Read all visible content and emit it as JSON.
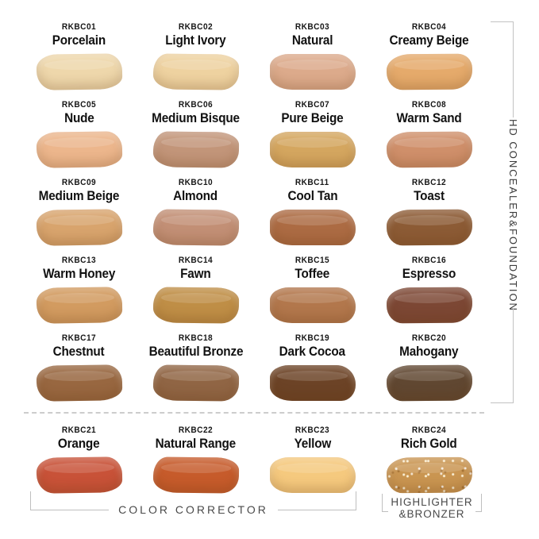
{
  "product_groups": {
    "right_vertical_label": "HD CONCEALER&FOUNDATION",
    "bottom_left_label": "COLOR CORRECTOR",
    "bottom_right_label_line1": "HIGHLIGHTER",
    "bottom_right_label_line2": "&BRONZER"
  },
  "style_colors": {
    "bracket_line": "#bfbfbf",
    "group_label_text": "#4a4a4a",
    "shade_label_text": "#111111",
    "divider_dash": "#cccccc",
    "background": "#ffffff"
  },
  "shades": [
    {
      "code": "RKBC01",
      "name": "Porcelain",
      "color": "#eed7ab",
      "group": "HD CONCEALER&FOUNDATION"
    },
    {
      "code": "RKBC02",
      "name": "Light Ivory",
      "color": "#eed2a0",
      "group": "HD CONCEALER&FOUNDATION"
    },
    {
      "code": "RKBC03",
      "name": "Natural",
      "color": "#dcaa8b",
      "group": "HD CONCEALER&FOUNDATION"
    },
    {
      "code": "RKBC04",
      "name": "Creamy Beige",
      "color": "#e5aa6b",
      "group": "HD CONCEALER&FOUNDATION"
    },
    {
      "code": "RKBC05",
      "name": "Nude",
      "color": "#ecb68c",
      "group": "HD CONCEALER&FOUNDATION"
    },
    {
      "code": "RKBC06",
      "name": "Medium Bisque",
      "color": "#c29579",
      "group": "HD CONCEALER&FOUNDATION"
    },
    {
      "code": "RKBC07",
      "name": "Pure Beige",
      "color": "#d4a65f",
      "group": "HD CONCEALER&FOUNDATION"
    },
    {
      "code": "RKBC08",
      "name": "Warm Sand",
      "color": "#cf8f6a",
      "group": "HD CONCEALER&FOUNDATION"
    },
    {
      "code": "RKBC09",
      "name": "Medium Beige",
      "color": "#d8a46d",
      "group": "HD CONCEALER&FOUNDATION"
    },
    {
      "code": "RKBC10",
      "name": "Almond",
      "color": "#c28f75",
      "group": "HD CONCEALER&FOUNDATION"
    },
    {
      "code": "RKBC11",
      "name": "Cool Tan",
      "color": "#ac6b43",
      "group": "HD CONCEALER&FOUNDATION"
    },
    {
      "code": "RKBC12",
      "name": "Toast",
      "color": "#8c5b35",
      "group": "HD CONCEALER&FOUNDATION"
    },
    {
      "code": "RKBC13",
      "name": "Warm Honey",
      "color": "#d29b60",
      "group": "HD CONCEALER&FOUNDATION"
    },
    {
      "code": "RKBC14",
      "name": "Fawn",
      "color": "#bf8e46",
      "group": "HD CONCEALER&FOUNDATION"
    },
    {
      "code": "RKBC15",
      "name": "Toffee",
      "color": "#b2774c",
      "group": "HD CONCEALER&FOUNDATION"
    },
    {
      "code": "RKBC16",
      "name": "Espresso",
      "color": "#7c4734",
      "group": "HD CONCEALER&FOUNDATION"
    },
    {
      "code": "RKBC17",
      "name": "Chestnut",
      "color": "#986740",
      "group": "HD CONCEALER&FOUNDATION"
    },
    {
      "code": "RKBC18",
      "name": "Beautiful Bronze",
      "color": "#906544",
      "group": "HD CONCEALER&FOUNDATION"
    },
    {
      "code": "RKBC19",
      "name": "Dark Cocoa",
      "color": "#6c4326",
      "group": "HD CONCEALER&FOUNDATION"
    },
    {
      "code": "RKBC20",
      "name": "Mahogany",
      "color": "#604731",
      "group": "HD CONCEALER&FOUNDATION"
    },
    {
      "code": "RKBC21",
      "name": "Orange",
      "color": "#c85238",
      "group": "COLOR CORRECTOR"
    },
    {
      "code": "RKBC22",
      "name": "Natural Range",
      "color": "#c65b2b",
      "group": "COLOR CORRECTOR"
    },
    {
      "code": "RKBC23",
      "name": "Yellow",
      "color": "#f5c97e",
      "group": "COLOR CORRECTOR"
    },
    {
      "code": "RKBC24",
      "name": "Rich Gold",
      "color": "#c99551, sparkle",
      "group": "HIGHLIGHTER&BRONZER",
      "sparkle": true
    }
  ]
}
